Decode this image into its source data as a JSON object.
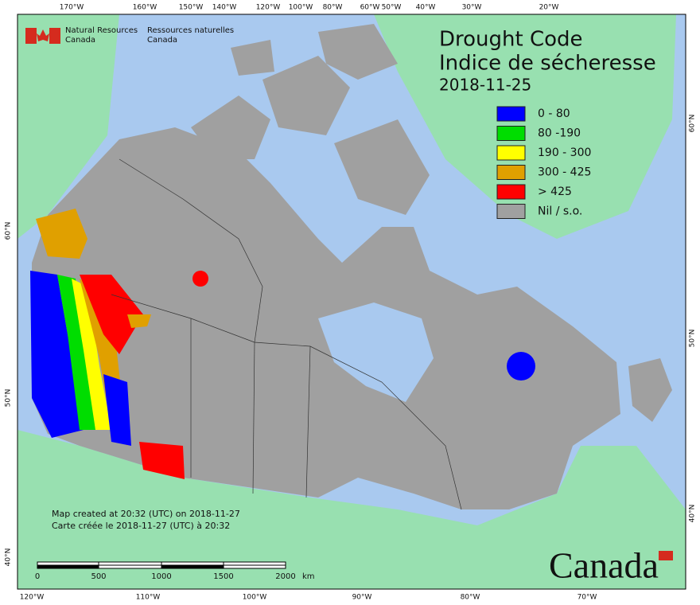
{
  "header": {
    "agency_en": "Natural Resources",
    "agency_en2": "Canada",
    "agency_fr": "Ressources naturelles",
    "agency_fr2": "Canada"
  },
  "title": "Drought Code",
  "title_fr": "Indice de sécheresse",
  "date": "2018-11-25",
  "legend": [
    {
      "label": "0 - 80",
      "color": "#0000ff"
    },
    {
      "label": "80 -190",
      "color": "#00dd00"
    },
    {
      "label": "190 - 300",
      "color": "#ffff00"
    },
    {
      "label": "300 - 425",
      "color": "#e0a000"
    },
    {
      "label": "> 425",
      "color": "#ff0000"
    },
    {
      "label": "Nil / s.o.",
      "color": "#a0a0a0"
    }
  ],
  "credits": [
    "Map created at 20:32 (UTC) on 2018-11-27",
    "Carte créée le 2018-11-27 (UTC) à 20:32"
  ],
  "scale": {
    "labels": [
      "0",
      "500",
      "1000",
      "1500",
      "2000"
    ],
    "unit": "km"
  },
  "wordmark": "Canada",
  "graticule": {
    "top": [
      "170°W",
      "160°W",
      "150°W",
      "140°W",
      "120°W",
      "100°W",
      "80°W",
      "60°W",
      "50°W",
      "40°W",
      "30°W",
      "20°W"
    ],
    "bottom": [
      "120°W",
      "110°W",
      "100°W",
      "90°W",
      "80°W",
      "70°W"
    ],
    "left": [
      "60°N",
      "50°N",
      "40°N"
    ],
    "right": [
      "60°N",
      "50°N",
      "40°N"
    ]
  }
}
